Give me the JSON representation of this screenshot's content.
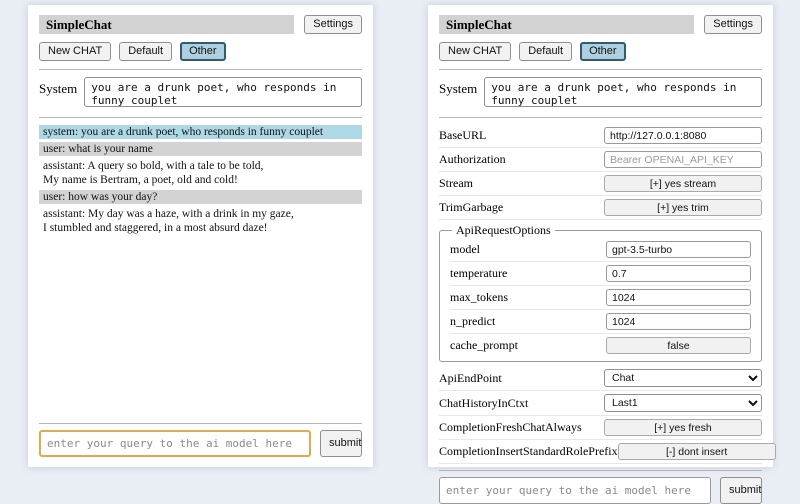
{
  "app": {
    "title": "SimpleChat",
    "settings_label": "Settings",
    "toolbar": {
      "new_chat": "New CHAT",
      "sessions": [
        "Default",
        "Other"
      ],
      "active_session": "Other"
    },
    "system_label": "System",
    "system_prompt": "you are a drunk poet, who responds in funny couplet",
    "query_placeholder": "enter your query to the ai model here",
    "submit_label": "submit"
  },
  "chat": {
    "messages": [
      {
        "role": "system",
        "text": "system: you are a drunk poet, who responds in funny couplet"
      },
      {
        "role": "user",
        "text": "user: what is your name"
      },
      {
        "role": "assistant",
        "text": "assistant: A query so bold, with a tale to be told,\nMy name is Bertram, a poet, old and cold!"
      },
      {
        "role": "user",
        "text": "user: how was your day?"
      },
      {
        "role": "assistant",
        "text": "assistant: My day was a haze, with a drink in my gaze,\nI stumbled and staggered, in a most absurd daze!"
      }
    ]
  },
  "settings": {
    "base_url": {
      "label": "BaseURL",
      "value": "http://127.0.0.1:8080"
    },
    "authorization": {
      "label": "Authorization",
      "placeholder": "Bearer OPENAI_API_KEY"
    },
    "stream": {
      "label": "Stream",
      "button": "[+] yes stream"
    },
    "trim_garbage": {
      "label": "TrimGarbage",
      "button": "[+] yes trim"
    },
    "api_request_options": {
      "legend": "ApiRequestOptions",
      "model": {
        "label": "model",
        "value": "gpt-3.5-turbo"
      },
      "temperature": {
        "label": "temperature",
        "value": "0.7"
      },
      "max_tokens": {
        "label": "max_tokens",
        "value": "1024"
      },
      "n_predict": {
        "label": "n_predict",
        "value": "1024"
      },
      "cache_prompt": {
        "label": "cache_prompt",
        "button": "false"
      }
    },
    "api_endpoint": {
      "label": "ApiEndPoint",
      "selected": "Chat"
    },
    "chat_history_in_ctxt": {
      "label": "ChatHistoryInCtxt",
      "selected": "Last1"
    },
    "completion_fresh_chat_always": {
      "label": "CompletionFreshChatAlways",
      "button": "[+] yes fresh"
    },
    "completion_insert_standard_role_prefix": {
      "label": "CompletionInsertStandardRolePrefix",
      "button": "[-] dont insert"
    }
  },
  "colors": {
    "page_background": "#e9edf4",
    "title_bar_background": "#d2d2d2",
    "system_message_background": "#add8e6",
    "user_message_background": "#d3d3d3",
    "selected_session_background": "#aecfdf",
    "selected_session_border": "#35596e",
    "focused_query_border": "#e2a94e"
  }
}
